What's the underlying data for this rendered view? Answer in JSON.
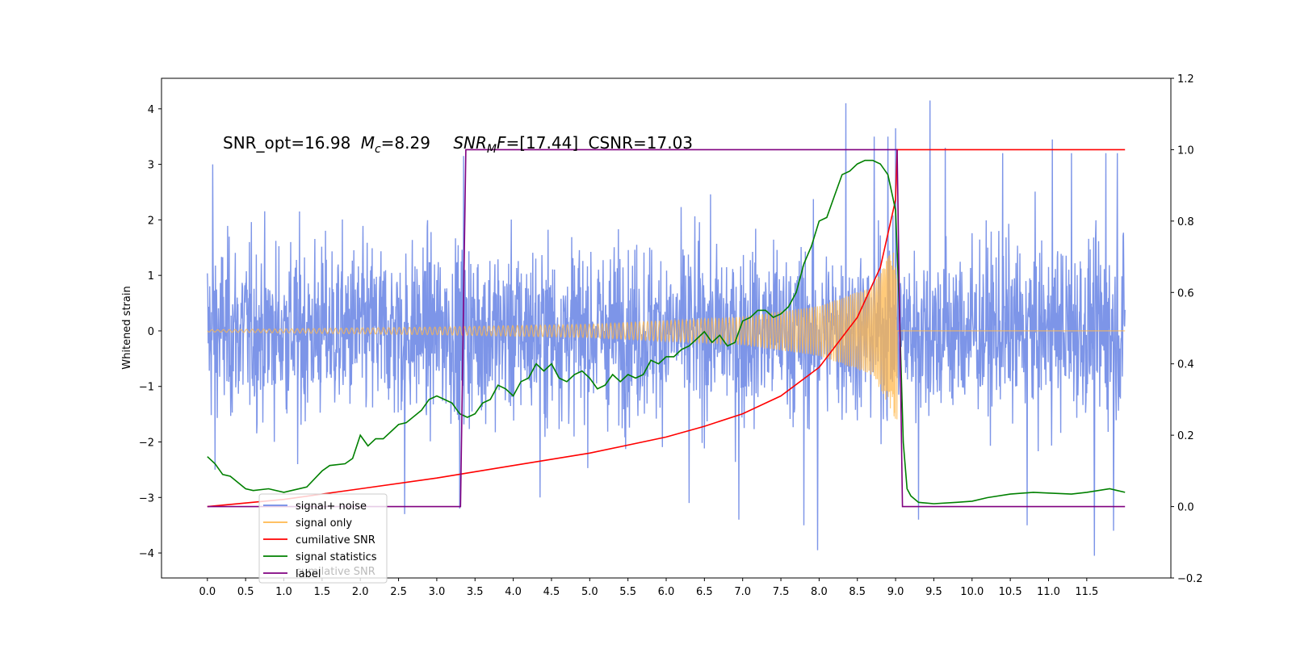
{
  "chart_data": {
    "type": "line",
    "annotation": {
      "snr_opt": "SNR_opt=16.98",
      "mc_symbol": "M",
      "mc_sub": "c",
      "mc_value": "=8.29",
      "snr_mf_symbol": "SNR",
      "snr_mf_sub": "M",
      "snr_mf_f": "F",
      "snr_mf_value": "=[17.44]",
      "csnr": "CSNR=17.03"
    },
    "ylabel": "Whitened strain",
    "xlabel": "",
    "x_ticks": [
      "0.0",
      "0.5",
      "1.0",
      "1.5",
      "2.0",
      "2.5",
      "3.0",
      "3.5",
      "4.0",
      "4.5",
      "5.0",
      "5.5",
      "6.0",
      "6.5",
      "7.0",
      "7.5",
      "8.0",
      "8.5",
      "9.0",
      "9.5",
      "10.0",
      "10.5",
      "11.0",
      "11.5"
    ],
    "y_left_ticks": [
      "4",
      "3",
      "2",
      "1",
      "0",
      "−1",
      "−2",
      "−3",
      "−4"
    ],
    "y_right_ticks": [
      "1.2",
      "1.0",
      "0.8",
      "0.6",
      "0.4",
      "0.2",
      "0.0",
      "−0.2"
    ],
    "xlim": [
      -0.6,
      12.6
    ],
    "ylim_left": [
      -4.45,
      4.55
    ],
    "ylim_right": [
      -0.2,
      1.2
    ],
    "legend_position": "lower-left",
    "legend": [
      {
        "label": "signal+ noise",
        "color": "#6f8ae6"
      },
      {
        "label": "signal only",
        "color": "#ffb84d"
      },
      {
        "label": "cumilative SNR",
        "color": "#ff0000"
      },
      {
        "label": "signal statistics",
        "color": "#008000"
      },
      {
        "label": "label",
        "color": "#800080"
      }
    ],
    "hidden_legend_text": "cumilative SNR",
    "series": [
      {
        "name": "signal+ noise",
        "axis": "left",
        "color": "#6f8ae6",
        "x_range": [
          0.0,
          12.0
        ],
        "envelope_typical": 2.0,
        "peaks": [
          {
            "x": 0.07,
            "y": 3.0
          },
          {
            "x": 0.1,
            "y": -2.5
          },
          {
            "x": 1.18,
            "y": -2.4
          },
          {
            "x": 2.58,
            "y": -3.3
          },
          {
            "x": 3.35,
            "y": 3.15
          },
          {
            "x": 3.3,
            "y": -3.2
          },
          {
            "x": 4.35,
            "y": -3.0
          },
          {
            "x": 6.3,
            "y": -3.1
          },
          {
            "x": 6.95,
            "y": -3.4
          },
          {
            "x": 7.8,
            "y": -3.5
          },
          {
            "x": 7.98,
            "y": -3.95
          },
          {
            "x": 8.35,
            "y": 4.1
          },
          {
            "x": 8.72,
            "y": 3.5
          },
          {
            "x": 8.9,
            "y": 3.5
          },
          {
            "x": 9.0,
            "y": 3.65
          },
          {
            "x": 9.45,
            "y": 4.15
          },
          {
            "x": 9.3,
            "y": -3.4
          },
          {
            "x": 9.65,
            "y": 3.3
          },
          {
            "x": 10.4,
            "y": 3.2
          },
          {
            "x": 10.72,
            "y": -3.5
          },
          {
            "x": 11.05,
            "y": 3.45
          },
          {
            "x": 11.3,
            "y": 3.2
          },
          {
            "x": 11.6,
            "y": -4.05
          },
          {
            "x": 11.75,
            "y": 3.2
          },
          {
            "x": 11.85,
            "y": -3.6
          },
          {
            "x": 11.9,
            "y": 3.2
          }
        ]
      },
      {
        "name": "signal only",
        "axis": "left",
        "color": "#ffb84d",
        "x_range": [
          0.0,
          12.0
        ],
        "chirp_end_x": 9.02,
        "amplitude_at_x": [
          [
            0.0,
            0.02
          ],
          [
            3.0,
            0.07
          ],
          [
            5.0,
            0.12
          ],
          [
            7.0,
            0.25
          ],
          [
            8.0,
            0.45
          ],
          [
            8.7,
            0.8
          ],
          [
            9.0,
            1.6
          ]
        ]
      },
      {
        "name": "cumilative SNR",
        "axis": "right",
        "color": "#ff0000",
        "x": [
          0.0,
          1.0,
          2.0,
          3.0,
          4.0,
          5.0,
          6.0,
          6.5,
          7.0,
          7.5,
          8.0,
          8.5,
          8.8,
          9.0,
          9.02,
          11.5,
          12.0
        ],
        "y": [
          0.0,
          0.02,
          0.05,
          0.08,
          0.115,
          0.15,
          0.195,
          0.225,
          0.26,
          0.31,
          0.39,
          0.53,
          0.67,
          0.86,
          1.0,
          1.0,
          1.0
        ]
      },
      {
        "name": "signal statistics",
        "axis": "right",
        "color": "#008000",
        "x": [
          0.0,
          0.1,
          0.2,
          0.3,
          0.5,
          0.6,
          0.8,
          1.0,
          1.1,
          1.3,
          1.5,
          1.6,
          1.8,
          1.9,
          2.0,
          2.1,
          2.2,
          2.3,
          2.5,
          2.6,
          2.8,
          2.9,
          3.0,
          3.1,
          3.2,
          3.3,
          3.4,
          3.5,
          3.6,
          3.7,
          3.8,
          3.9,
          4.0,
          4.1,
          4.2,
          4.3,
          4.4,
          4.5,
          4.6,
          4.7,
          4.8,
          4.9,
          5.0,
          5.1,
          5.2,
          5.3,
          5.4,
          5.5,
          5.6,
          5.7,
          5.8,
          5.9,
          6.0,
          6.1,
          6.2,
          6.3,
          6.4,
          6.5,
          6.6,
          6.7,
          6.8,
          6.9,
          7.0,
          7.1,
          7.2,
          7.3,
          7.4,
          7.5,
          7.6,
          7.7,
          7.8,
          7.9,
          8.0,
          8.1,
          8.2,
          8.3,
          8.4,
          8.5,
          8.6,
          8.7,
          8.8,
          8.9,
          9.0,
          9.05,
          9.1,
          9.15,
          9.2,
          9.3,
          9.5,
          9.8,
          10.0,
          10.2,
          10.5,
          10.8,
          11.0,
          11.3,
          11.5,
          11.8,
          11.9,
          12.0
        ],
        "y": [
          0.14,
          0.12,
          0.09,
          0.085,
          0.05,
          0.045,
          0.05,
          0.04,
          0.045,
          0.055,
          0.1,
          0.115,
          0.12,
          0.135,
          0.2,
          0.17,
          0.19,
          0.19,
          0.23,
          0.235,
          0.27,
          0.3,
          0.31,
          0.3,
          0.29,
          0.26,
          0.25,
          0.26,
          0.29,
          0.3,
          0.34,
          0.33,
          0.31,
          0.35,
          0.36,
          0.4,
          0.38,
          0.4,
          0.36,
          0.35,
          0.37,
          0.38,
          0.36,
          0.33,
          0.34,
          0.37,
          0.35,
          0.37,
          0.36,
          0.37,
          0.41,
          0.4,
          0.42,
          0.42,
          0.44,
          0.45,
          0.47,
          0.49,
          0.46,
          0.48,
          0.45,
          0.46,
          0.52,
          0.53,
          0.55,
          0.55,
          0.53,
          0.54,
          0.56,
          0.6,
          0.68,
          0.73,
          0.8,
          0.81,
          0.87,
          0.93,
          0.94,
          0.96,
          0.97,
          0.97,
          0.96,
          0.93,
          0.83,
          0.55,
          0.18,
          0.05,
          0.03,
          0.012,
          0.008,
          0.012,
          0.015,
          0.025,
          0.035,
          0.04,
          0.038,
          0.035,
          0.04,
          0.05,
          0.045,
          0.04
        ]
      },
      {
        "name": "label",
        "axis": "right",
        "color": "#800080",
        "x": [
          0.0,
          3.31,
          3.38,
          9.02,
          9.09,
          12.0
        ],
        "y": [
          0.0,
          0.0,
          1.0,
          1.0,
          0.0,
          0.0
        ]
      }
    ]
  }
}
